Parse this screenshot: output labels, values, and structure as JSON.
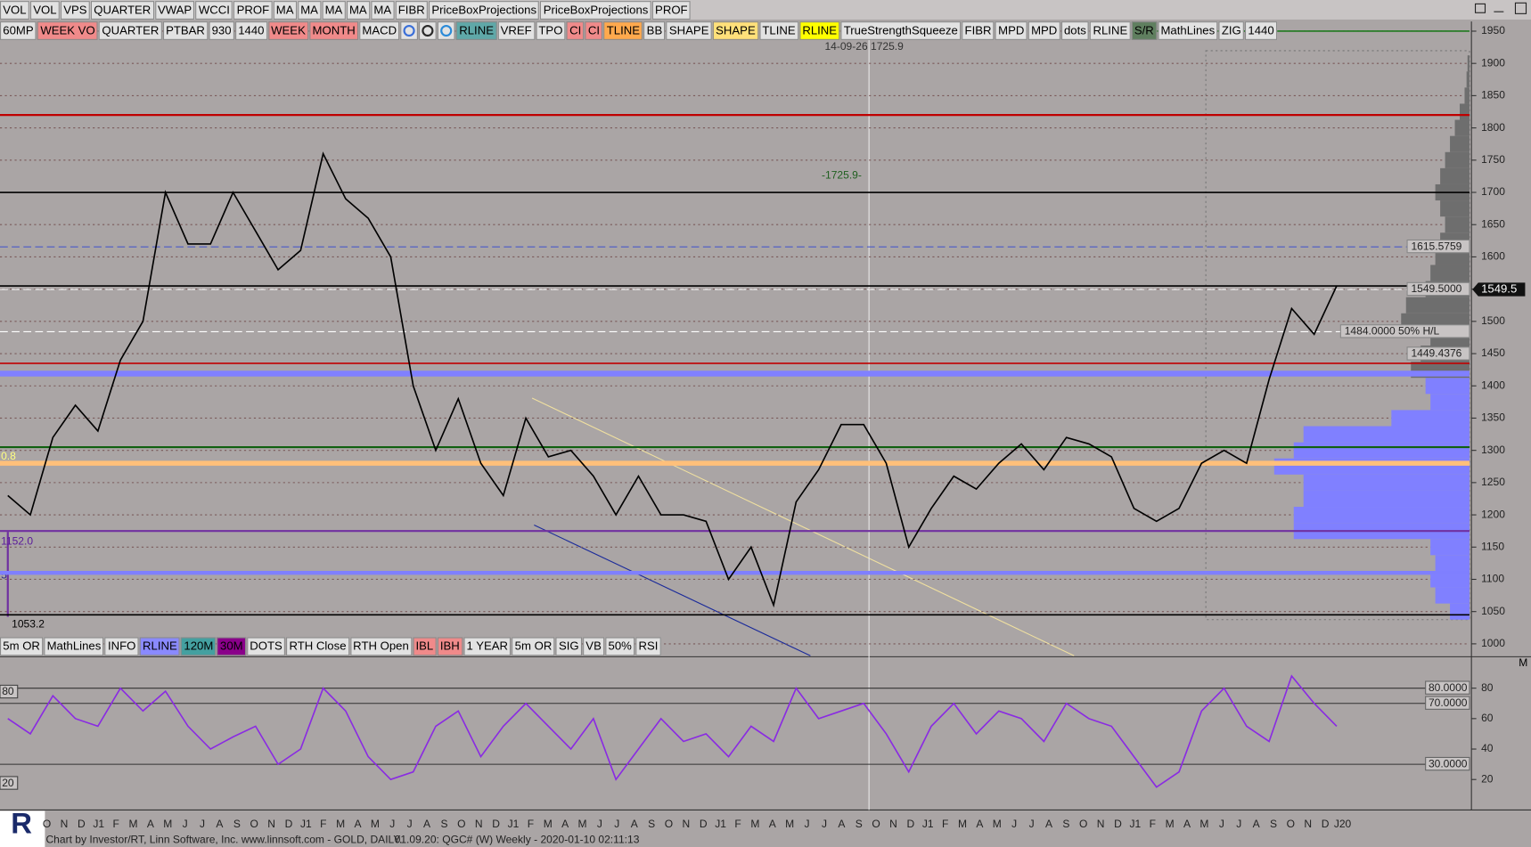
{
  "toolbar_top": [
    {
      "label": "VOL",
      "bg": "#e2e2e2"
    },
    {
      "label": "VOL",
      "bg": "#e2e2e2"
    },
    {
      "label": "VPS",
      "bg": "#e2e2e2"
    },
    {
      "label": "QUARTER",
      "bg": "#e2e2e2"
    },
    {
      "label": "VWAP",
      "bg": "#e2e2e2"
    },
    {
      "label": "WCCI",
      "bg": "#e2e2e2"
    },
    {
      "label": "PROF",
      "bg": "#e2e2e2"
    },
    {
      "label": "MA",
      "bg": "#e2e2e2"
    },
    {
      "label": "MA",
      "bg": "#e2e2e2"
    },
    {
      "label": "MA",
      "bg": "#e2e2e2"
    },
    {
      "label": "MA",
      "bg": "#e2e2e2"
    },
    {
      "label": "MA",
      "bg": "#e2e2e2"
    },
    {
      "label": "FIBR",
      "bg": "#e2e2e2"
    },
    {
      "label": "PriceBoxProjections",
      "bg": "#e2e2e2"
    },
    {
      "label": "PriceBoxProjections",
      "bg": "#e2e2e2"
    },
    {
      "label": "PROF",
      "bg": "#e2e2e2"
    }
  ],
  "toolbar_indicators": [
    {
      "label": "60MP",
      "bg": "#e2e2e2"
    },
    {
      "label": "WEEK VO",
      "bg": "#f08a8a"
    },
    {
      "label": "QUARTER",
      "bg": "#e2e2e2"
    },
    {
      "label": "PTBAR",
      "bg": "#e2e2e2"
    },
    {
      "label": "930",
      "bg": "#e2e2e2"
    },
    {
      "label": "1440",
      "bg": "#e2e2e2"
    },
    {
      "label": "WEEK",
      "bg": "#f08a8a"
    },
    {
      "label": "MONTH",
      "bg": "#f08a8a"
    },
    {
      "label": "MACD",
      "bg": "#e2e2e2"
    }
  ],
  "toolbar_studies": [
    {
      "label": "RLINE",
      "bg": "#5fa8a8"
    },
    {
      "label": "VREF",
      "bg": "#e2e2e2"
    },
    {
      "label": "TPO",
      "bg": "#e2e2e2"
    },
    {
      "label": "CI",
      "bg": "#f08a8a"
    },
    {
      "label": "CI",
      "bg": "#f08a8a"
    },
    {
      "label": "TLINE",
      "bg": "#ffa94d"
    },
    {
      "label": "BB",
      "bg": "#e2e2e2"
    },
    {
      "label": "SHAPE",
      "bg": "#e2e2e2"
    },
    {
      "label": "SHAPE",
      "bg": "#ffe07a"
    },
    {
      "label": "TLINE",
      "bg": "#e2e2e2"
    },
    {
      "label": "RLINE",
      "bg": "#ffff00"
    },
    {
      "label": "TrueStrengthSqueeze",
      "bg": "#e2e2e2"
    },
    {
      "label": "FIBR",
      "bg": "#e2e2e2"
    },
    {
      "label": "MPD",
      "bg": "#e2e2e2"
    },
    {
      "label": "MPD",
      "bg": "#e2e2e2"
    },
    {
      "label": "dots",
      "bg": "#e2e2e2"
    },
    {
      "label": "RLINE",
      "bg": "#e2e2e2"
    },
    {
      "label": "S/R",
      "bg": "#5f7f5f"
    },
    {
      "label": "MathLines",
      "bg": "#e2e2e2"
    },
    {
      "label": "ZIG",
      "bg": "#e2e2e2"
    },
    {
      "label": "1440",
      "bg": "#e2e2e2"
    }
  ],
  "toolbar_bottom": [
    {
      "label": "5m OR",
      "bg": "#e2e2e2"
    },
    {
      "label": "MathLines",
      "bg": "#e2e2e2"
    },
    {
      "label": "INFO",
      "bg": "#e2e2e2"
    },
    {
      "label": "RLINE",
      "bg": "#8a8aff"
    },
    {
      "label": "120M",
      "bg": "#44a0a0"
    },
    {
      "label": "30M",
      "bg": "#8a008a"
    },
    {
      "label": "DOTS",
      "bg": "#e2e2e2"
    },
    {
      "label": "RTH Close",
      "bg": "#e2e2e2"
    },
    {
      "label": "RTH Open",
      "bg": "#e2e2e2"
    },
    {
      "label": "IBL",
      "bg": "#f08a8a"
    },
    {
      "label": "IBH",
      "bg": "#f08a8a"
    },
    {
      "label": "1 YEAR",
      "bg": "#e2e2e2"
    },
    {
      "label": "5m OR",
      "bg": "#e2e2e2"
    },
    {
      "label": "SIG",
      "bg": "#e2e2e2"
    },
    {
      "label": "VB",
      "bg": "#e2e2e2"
    },
    {
      "label": "50%",
      "bg": "#e2e2e2"
    },
    {
      "label": "RSI",
      "bg": "#e2e2e2"
    }
  ],
  "annotations": [
    "14-09-26  1725.9",
    "-1725.9-",
    "0.8",
    "1152.0",
    "5",
    "1053.2"
  ],
  "time_axis": [
    "O",
    "N",
    "D",
    "J1",
    "F",
    "M",
    "A",
    "M",
    "J",
    "J",
    "A",
    "S",
    "O",
    "N",
    "D",
    "J1",
    "F",
    "M",
    "A",
    "M",
    "J",
    "J",
    "A",
    "S",
    "O",
    "N",
    "D",
    "J1",
    "F",
    "M",
    "A",
    "M",
    "J",
    "J",
    "A",
    "S",
    "O",
    "N",
    "D",
    "J1",
    "F",
    "M",
    "A",
    "M",
    "J",
    "J",
    "A",
    "S",
    "O",
    "N",
    "D",
    "J1",
    "F",
    "M",
    "A",
    "M",
    "J",
    "J",
    "A",
    "S",
    "O",
    "N",
    "D",
    "J1",
    "F",
    "M",
    "A",
    "M",
    "J",
    "J",
    "A",
    "S",
    "O",
    "N",
    "D",
    "J20"
  ],
  "footer": {
    "credit": "Chart by Investor/RT, Linn Software, Inc. www.linnsoft.com - GOLD, DAILY.",
    "stamp": "01.09.20: QGC# (W) Weekly - 2020-01-10 02:11:13",
    "logo": "R",
    "panel_tag": "M"
  },
  "chart_data": [
    {
      "type": "line",
      "ylim": [
        980,
        1962
      ],
      "yticks": [
        1000,
        1050,
        1100,
        1150,
        1200,
        1250,
        1300,
        1350,
        1400,
        1450,
        1500,
        1550,
        1600,
        1650,
        1700,
        1750,
        1800,
        1850,
        1900,
        1950
      ],
      "grid": true,
      "series": [
        {
          "color": "#000000",
          "values": [
            1230,
            1200,
            1320,
            1370,
            1330,
            1440,
            1500,
            1700,
            1620,
            1620,
            1700,
            1640,
            1580,
            1610,
            1760,
            1690,
            1660,
            1600,
            1400,
            1300,
            1380,
            1280,
            1230,
            1350,
            1290,
            1300,
            1260,
            1200,
            1260,
            1200,
            1200,
            1190,
            1100,
            1150,
            1060,
            1220,
            1270,
            1340,
            1340,
            1280,
            1150,
            1210,
            1260,
            1240,
            1280,
            1310,
            1270,
            1320,
            1310,
            1290,
            1210,
            1190,
            1210,
            1280,
            1300,
            1280,
            1410,
            1520,
            1480,
            1555
          ]
        }
      ],
      "levels": [
        {
          "value": 1950,
          "color": "#1f7a1f",
          "width": 1.5,
          "dash": "none"
        },
        {
          "value": 1820,
          "color": "#c00000",
          "width": 2,
          "dash": "none"
        },
        {
          "value": 1700,
          "color": "#000000",
          "width": 1.5,
          "dash": "none"
        },
        {
          "value": 1615.5759,
          "color": "#4a5ac8",
          "width": 1,
          "dash": "8 4"
        },
        {
          "value": 1555,
          "color": "#000000",
          "width": 1.5,
          "dash": "none"
        },
        {
          "value": 1549.5,
          "color": "#ffffff",
          "width": 1,
          "dash": "8 4"
        },
        {
          "value": 1484,
          "color": "#ffffff",
          "width": 1,
          "dash": "8 4"
        },
        {
          "value": 1435,
          "color": "#c00000",
          "width": 1.5,
          "dash": "none"
        },
        {
          "value": 1419,
          "color": "#8080ff",
          "width": 6,
          "dash": "none"
        },
        {
          "value": 1305,
          "color": "#106010",
          "width": 2,
          "dash": "none"
        },
        {
          "value": 1280,
          "color": "#ffc07a",
          "width": 5,
          "dash": "none"
        },
        {
          "value": 1175,
          "color": "#7030a0",
          "width": 2,
          "dash": "none"
        },
        {
          "value": 1110,
          "color": "#7f7fff",
          "width": 4,
          "dash": "none"
        },
        {
          "value": 1045,
          "color": "#000000",
          "width": 1.5,
          "dash": "none"
        }
      ],
      "tags": [
        {
          "value": 1615.5759,
          "label": "1615.5759"
        },
        {
          "value": 1549.5,
          "label": "1549.5000"
        },
        {
          "value": 1484,
          "label": "1484.0000  50%   H/L"
        },
        {
          "value": 1449.4376,
          "label": "1449.4376"
        }
      ],
      "last_price": {
        "value": 1549.5,
        "label": "1549.5"
      },
      "profile": {
        "prices": [
          1050,
          1075,
          1100,
          1125,
          1150,
          1175,
          1200,
          1225,
          1250,
          1275,
          1300,
          1325,
          1350,
          1375,
          1400,
          1425,
          1450,
          1475,
          1500,
          1525,
          1550,
          1575,
          1600,
          1625,
          1650,
          1675,
          1700,
          1725,
          1750,
          1775,
          1800,
          1825,
          1850,
          1875,
          1900
        ],
        "volumes": [
          20,
          35,
          40,
          35,
          40,
          180,
          180,
          170,
          170,
          200,
          180,
          170,
          80,
          40,
          45,
          60,
          50,
          40,
          70,
          65,
          45,
          40,
          35,
          30,
          25,
          30,
          35,
          30,
          25,
          20,
          15,
          10,
          5,
          3,
          2
        ],
        "value_area_top": 1412,
        "color_in": "#8080ff",
        "color_out": "#6e6e6e"
      }
    },
    {
      "type": "line",
      "ylim": [
        0,
        100
      ],
      "yticks": [
        20,
        40,
        60,
        80
      ],
      "series": [
        {
          "color": "#8a2be2",
          "values": [
            60,
            50,
            75,
            60,
            55,
            80,
            65,
            78,
            55,
            40,
            48,
            55,
            30,
            40,
            80,
            65,
            35,
            20,
            25,
            55,
            65,
            35,
            55,
            70,
            55,
            40,
            60,
            20,
            40,
            60,
            45,
            50,
            35,
            55,
            45,
            80,
            60,
            65,
            70,
            50,
            25,
            55,
            70,
            50,
            65,
            60,
            45,
            70,
            60,
            55,
            35,
            15,
            25,
            65,
            80,
            55,
            45,
            88,
            70,
            55
          ]
        }
      ],
      "levels": [
        {
          "value": 80,
          "label": "80.0000"
        },
        {
          "value": 70,
          "label": "70.0000"
        },
        {
          "value": 30,
          "label": "30.0000"
        }
      ],
      "left_labels": [
        80,
        20
      ]
    }
  ]
}
